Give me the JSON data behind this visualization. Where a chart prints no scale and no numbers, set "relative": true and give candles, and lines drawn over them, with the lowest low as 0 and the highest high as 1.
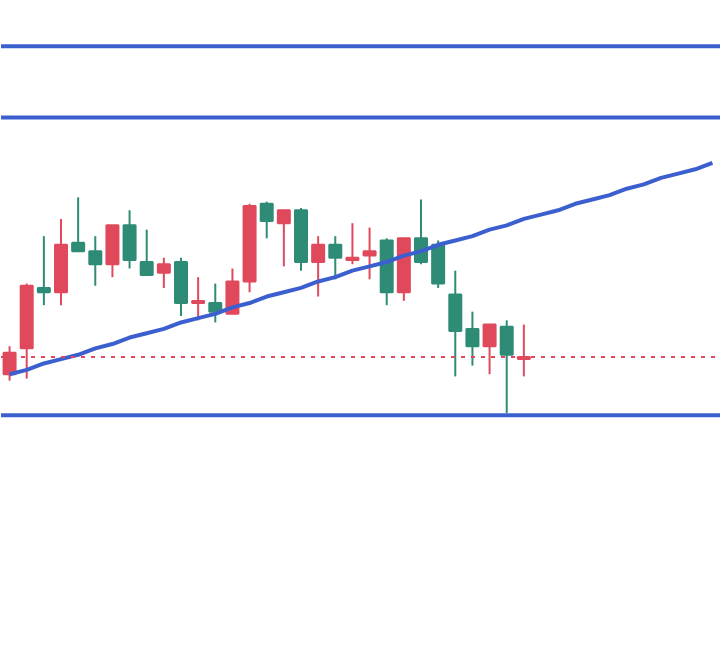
{
  "chart_data": {
    "type": "candlestick",
    "relative": true,
    "tick_labels": false,
    "grid": false,
    "categories": [
      null,
      null,
      null,
      null,
      null,
      null,
      null,
      null,
      null,
      null,
      null,
      null,
      null,
      null,
      null,
      null,
      null,
      null,
      null,
      null,
      null,
      null,
      null,
      null,
      null,
      null,
      null,
      null,
      null,
      null,
      null,
      null,
      null,
      null,
      null,
      null,
      null,
      null,
      null,
      null,
      null,
      null
    ],
    "ylim": [
      -1.14,
      1.91
    ],
    "ohlc": [
      [
        0.18,
        0.31,
        0.15,
        0.28
      ],
      [
        0.3,
        0.6,
        0.16,
        0.59
      ],
      [
        0.58,
        0.82,
        0.5,
        0.56
      ],
      [
        0.56,
        0.9,
        0.5,
        0.78
      ],
      [
        0.79,
        1.0,
        0.75,
        0.75
      ],
      [
        0.75,
        0.82,
        0.59,
        0.69
      ],
      [
        0.69,
        0.87,
        0.63,
        0.87
      ],
      [
        0.87,
        0.94,
        0.67,
        0.71
      ],
      [
        0.7,
        0.85,
        0.64,
        0.64
      ],
      [
        0.65,
        0.72,
        0.58,
        0.69
      ],
      [
        0.7,
        0.72,
        0.45,
        0.51
      ],
      [
        0.51,
        0.63,
        0.43,
        0.52
      ],
      [
        0.51,
        0.6,
        0.42,
        0.47
      ],
      [
        0.46,
        0.67,
        0.46,
        0.61
      ],
      [
        0.61,
        0.97,
        0.56,
        0.96
      ],
      [
        0.97,
        0.98,
        0.81,
        0.89
      ],
      [
        0.88,
        0.94,
        0.68,
        0.94
      ],
      [
        0.94,
        0.95,
        0.66,
        0.7
      ],
      [
        0.7,
        0.82,
        0.54,
        0.78
      ],
      [
        0.78,
        0.82,
        0.62,
        0.72
      ],
      [
        0.71,
        0.88,
        0.69,
        0.72
      ],
      [
        0.73,
        0.86,
        0.62,
        0.75
      ],
      [
        0.8,
        0.81,
        0.5,
        0.56
      ],
      [
        0.56,
        0.81,
        0.52,
        0.81
      ],
      [
        0.81,
        0.99,
        0.69,
        0.7
      ],
      [
        0.78,
        0.8,
        0.58,
        0.6
      ],
      [
        0.55,
        0.66,
        0.17,
        0.38
      ],
      [
        0.39,
        0.47,
        0.22,
        0.31
      ],
      [
        0.31,
        0.41,
        0.18,
        0.41
      ],
      [
        0.4,
        0.43,
        0.0,
        0.27
      ],
      [
        0.25,
        0.41,
        0.17,
        0.26
      ],
      null,
      null,
      null,
      null,
      null,
      null,
      null,
      null,
      null,
      null,
      null
    ],
    "colors": [
      "#e0495c",
      "#e0495c",
      "#2e8b75",
      "#e0495c",
      "#2e8b75",
      "#2e8b75",
      "#e0495c",
      "#2e8b75",
      "#2e8b75",
      "#e0495c",
      "#2e8b75",
      "#e0495c",
      "#2e8b75",
      "#e0495c",
      "#e0495c",
      "#2e8b75",
      "#e0495c",
      "#2e8b75",
      "#e0495c",
      "#2e8b75",
      "#e0495c",
      "#e0495c",
      "#2e8b75",
      "#e0495c",
      "#2e8b75",
      "#2e8b75",
      "#2e8b75",
      "#2e8b75",
      "#e0495c",
      "#2e8b75",
      "#e0495c",
      null,
      null,
      null,
      null,
      null,
      null,
      null,
      null,
      null,
      null,
      null
    ],
    "series": [
      {
        "type": "line",
        "values": [
          0.18,
          0.2,
          0.23,
          0.25,
          0.27,
          0.3,
          0.32,
          0.35,
          0.37,
          0.39,
          0.42,
          0.44,
          0.46,
          0.49,
          0.51,
          0.54,
          0.56,
          0.58,
          0.61,
          0.63,
          0.66,
          0.68,
          0.7,
          0.73,
          0.75,
          0.78,
          0.8,
          0.82,
          0.85,
          0.87,
          0.9,
          0.92,
          0.94,
          0.97,
          0.99,
          1.01,
          1.04,
          1.06,
          1.09,
          1.11,
          1.13,
          1.16
        ],
        "color": "#3c5fcf"
      }
    ],
    "ref_lines": [
      {
        "axis": "y",
        "value": 1.7,
        "color": "#3c5fcf",
        "line_style": "solid"
      },
      {
        "axis": "y",
        "value": 1.37,
        "color": "#3c5fcf",
        "line_style": "solid"
      },
      {
        "axis": "y",
        "value": -0.01,
        "color": "#3c5fcf",
        "line_style": "solid"
      },
      {
        "axis": "y",
        "value": 0.26,
        "color": "#e0495c",
        "line_style": "dotted"
      }
    ]
  }
}
